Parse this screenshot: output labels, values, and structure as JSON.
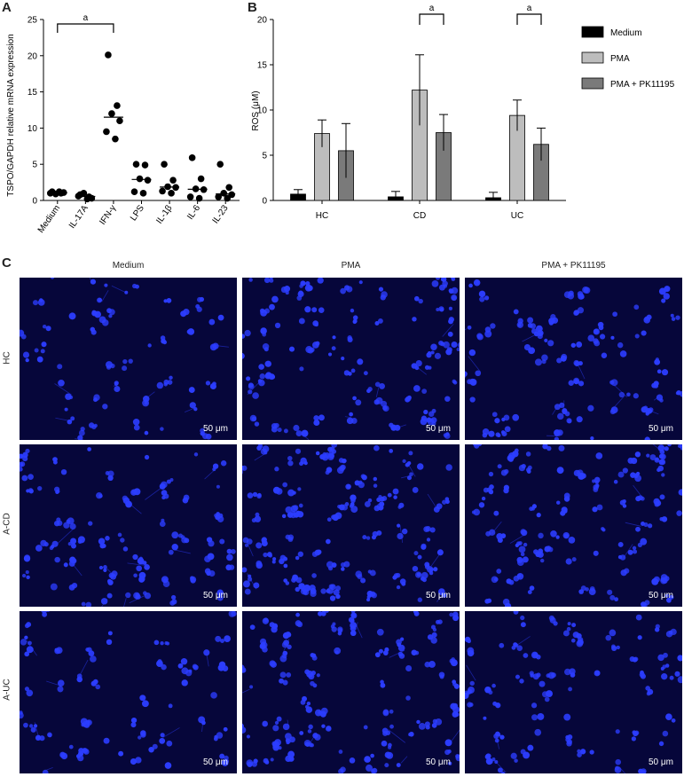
{
  "panels": {
    "a": "A",
    "b": "B",
    "c": "C"
  },
  "chart_data": [
    {
      "type": "scatter",
      "panel": "A",
      "ylabel": "TSPO/GAPDH relative mRNA expression",
      "ylim": [
        0,
        25
      ],
      "yticks": [
        0,
        5,
        10,
        15,
        20,
        25
      ],
      "categories": [
        "Medium",
        "IL-17A",
        "IFN-γ",
        "LPS",
        "IL-1β",
        "IL-6",
        "IL-23"
      ],
      "points": [
        [
          1.2,
          1.0,
          0.9,
          1.1,
          1.0,
          1.2
        ],
        [
          0.8,
          0.5,
          1.0,
          0.3,
          0.6,
          0.2
        ],
        [
          20.1,
          13.1,
          12.0,
          11.0,
          9.5,
          8.5
        ],
        [
          5.0,
          4.9,
          3.0,
          2.8,
          1.2,
          1.0
        ],
        [
          5.0,
          2.8,
          1.9,
          1.8,
          1.3,
          1.0
        ],
        [
          5.9,
          3.0,
          1.6,
          1.5,
          0.5,
          0.3
        ],
        [
          5.0,
          1.8,
          1.0,
          0.8,
          0.5,
          0.3
        ]
      ],
      "medians": [
        1.05,
        0.55,
        11.5,
        2.9,
        1.85,
        1.55,
        0.9
      ],
      "annotation": {
        "label": "a",
        "from": "Medium",
        "to": "IFN-γ"
      }
    },
    {
      "type": "bar",
      "panel": "B",
      "ylabel": "ROS (μM)",
      "ylim": [
        0,
        20
      ],
      "yticks": [
        0,
        5,
        10,
        15,
        20
      ],
      "categories": [
        "HC",
        "CD",
        "UC"
      ],
      "series": [
        {
          "name": "Medium",
          "color": "#000000",
          "values": [
            0.7,
            0.4,
            0.3
          ],
          "errors": [
            0.5,
            0.6,
            0.6
          ]
        },
        {
          "name": "PMA",
          "color": "#bdbdbd",
          "values": [
            7.4,
            12.2,
            9.4
          ],
          "errors": [
            1.5,
            3.9,
            1.7
          ]
        },
        {
          "name": "PMA + PK11195",
          "color": "#7a7a7a",
          "values": [
            5.5,
            7.5,
            6.2
          ],
          "errors": [
            3.0,
            2.0,
            1.8
          ]
        }
      ],
      "annotations": [
        {
          "label": "a",
          "category": "CD"
        },
        {
          "label": "a",
          "category": "UC"
        }
      ]
    }
  ],
  "micrographs": {
    "columns": [
      "Medium",
      "PMA",
      "PMA + PK11195"
    ],
    "rows": [
      "HC",
      "A-CD",
      "A-UC"
    ],
    "scale_label": "50 μm",
    "cell_color": "#2c3dff",
    "background_color": "#06063a"
  }
}
